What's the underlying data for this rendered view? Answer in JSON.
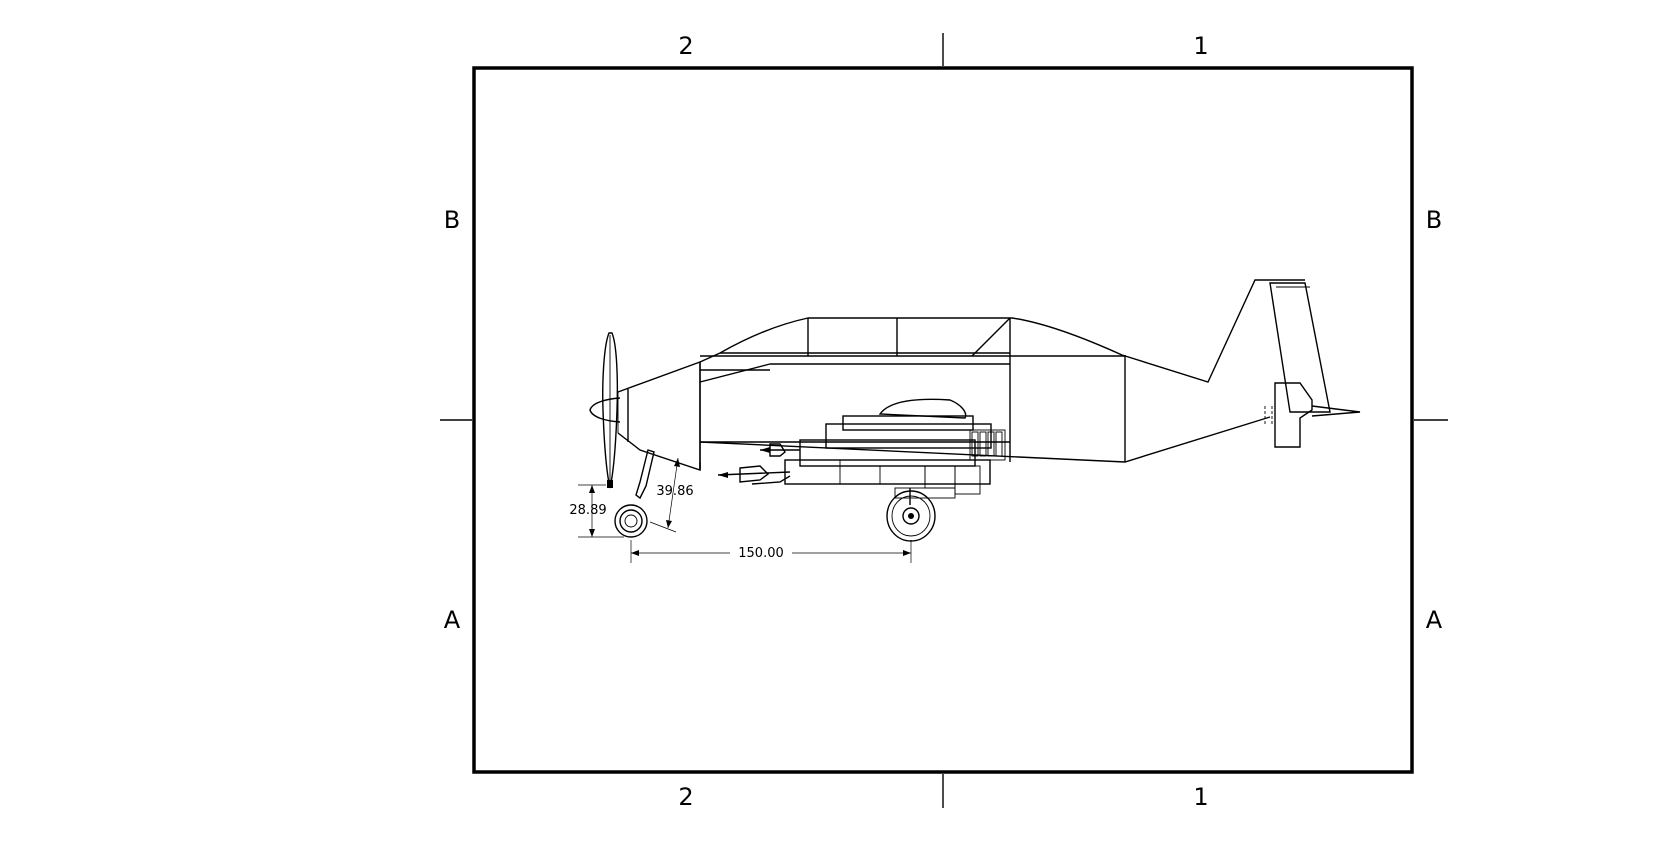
{
  "zones": {
    "top_left": "2",
    "top_right": "1",
    "bottom_left": "2",
    "bottom_right": "1",
    "left_upper": "B",
    "left_lower": "A",
    "right_upper": "B",
    "right_lower": "A"
  },
  "dimensions": {
    "vertical_height": "28.89",
    "angled": "39.86",
    "wheelbase": "150.00"
  }
}
